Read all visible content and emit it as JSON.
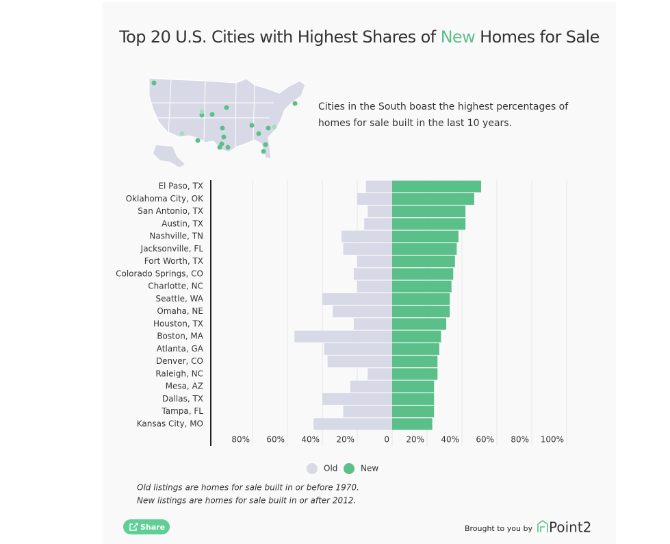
{
  "chart_data": {
    "type": "bar",
    "title_before": "Top 20 U.S. Cities with Highest Shares of ",
    "title_highlight": "New",
    "title_after": " Homes for Sale",
    "subtitle_lines": [
      "Cities in the South boast the highest percentages of",
      "homes for sale built in the last 10 years."
    ],
    "categories": [
      "El Paso, TX",
      "Oklahoma City, OK",
      "San Antonio, TX",
      "Austin, TX",
      "Nashville, TN",
      "Jacksonville, FL",
      "Fort Worth, TX",
      "Colorado Springs, CO",
      "Charlotte, NC",
      "Seattle, WA",
      "Omaha, NE",
      "Houston, TX",
      "Boston, MA",
      "Atlanta, GA",
      "Denver, CO",
      "Raleigh, NC",
      "Mesa, AZ",
      "Dallas, TX",
      "Tampa, FL",
      "Kansas City, MO"
    ],
    "series": [
      {
        "name": "Old",
        "color": "#d8d9e6",
        "values": [
          15,
          20,
          14,
          16,
          29,
          28,
          20,
          22,
          20,
          40,
          34,
          22,
          56,
          39,
          37,
          14,
          24,
          40,
          28,
          45
        ]
      },
      {
        "name": "New",
        "color": "#5bbf8a",
        "values": [
          51,
          47,
          42,
          42,
          38,
          37,
          36,
          35,
          34,
          33,
          33,
          31,
          28,
          27,
          26,
          26,
          24,
          24,
          24,
          23
        ]
      }
    ],
    "xlim": [
      -100,
      100
    ],
    "xticks": [
      {
        "value": -80,
        "label": "80%"
      },
      {
        "value": -60,
        "label": "60%"
      },
      {
        "value": -40,
        "label": "40%"
      },
      {
        "value": -20,
        "label": "20%"
      },
      0,
      {
        "value": 20,
        "label": "20%"
      },
      {
        "value": 40,
        "label": "40%"
      },
      {
        "value": 60,
        "label": "60%"
      },
      {
        "value": 80,
        "label": "80%"
      },
      {
        "value": 100,
        "label": "100%"
      }
    ],
    "grid": true,
    "notes": [
      "Old listings are homes for sale built in or before 1970.",
      "New listings are homes for sale built in or after 2012."
    ],
    "share_button": "Share",
    "credit": "Brought to you by",
    "brand": "Point2"
  }
}
